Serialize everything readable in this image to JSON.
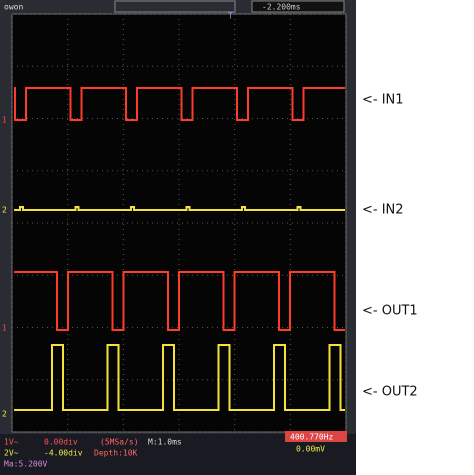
{
  "header": {
    "brand": "owon",
    "trigger_marker": "T",
    "time_offset": "-2.200ms"
  },
  "channels": [
    {
      "marker": "1",
      "label": "<- IN1"
    },
    {
      "marker": "2",
      "label": "<- IN2"
    },
    {
      "marker": "1",
      "label": "<- OUT1"
    },
    {
      "marker": "2",
      "label": "<- OUT2"
    }
  ],
  "status": {
    "ch1_name": "1V~",
    "ch1_offset": "0.00div",
    "ch2_name": "2V~",
    "ch2_offset": "-4.00div",
    "math": "Ma:5.200V",
    "sample_rate": "(5MSa/s)",
    "depth": "Depth:10K",
    "timebase": "M:1.0ms",
    "frequency": "400.770Hz",
    "trigger_level": "0.00mV"
  }
}
